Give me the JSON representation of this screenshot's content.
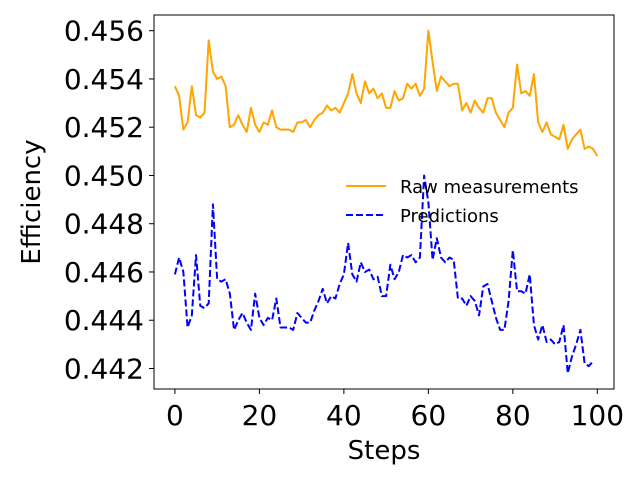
{
  "chart_data": {
    "type": "line",
    "xlabel": "Steps",
    "ylabel": "Efficiency",
    "xlim": [
      -4.95,
      103.95
    ],
    "ylim": [
      0.44115,
      0.45665
    ],
    "xticks": [
      0,
      20,
      40,
      60,
      80,
      100
    ],
    "xtick_labels": [
      "0",
      "20",
      "40",
      "60",
      "80",
      "100"
    ],
    "yticks": [
      0.442,
      0.444,
      0.446,
      0.448,
      0.45,
      0.452,
      0.454,
      0.456
    ],
    "ytick_labels": [
      "0.442",
      "0.444",
      "0.446",
      "0.448",
      "0.450",
      "0.452",
      "0.454",
      "0.456"
    ],
    "grid": false,
    "legend_position": "center-right",
    "series": [
      {
        "name": "Raw measurements",
        "color": "#ffa500",
        "style": "solid",
        "values": [
          0.4537,
          0.4533,
          0.4519,
          0.4522,
          0.4537,
          0.4525,
          0.4524,
          0.4526,
          0.4556,
          0.4543,
          0.454,
          0.4541,
          0.4537,
          0.452,
          0.4521,
          0.4525,
          0.4521,
          0.4518,
          0.4528,
          0.4521,
          0.4518,
          0.4522,
          0.4521,
          0.4527,
          0.452,
          0.4519,
          0.4519,
          0.4519,
          0.4518,
          0.4522,
          0.4522,
          0.4523,
          0.452,
          0.4523,
          0.4525,
          0.4526,
          0.4529,
          0.4527,
          0.4528,
          0.4526,
          0.453,
          0.4534,
          0.4542,
          0.4534,
          0.453,
          0.4539,
          0.4534,
          0.4536,
          0.4532,
          0.4534,
          0.4528,
          0.4528,
          0.4535,
          0.4531,
          0.4532,
          0.4538,
          0.4536,
          0.4538,
          0.4533,
          0.4536,
          0.456,
          0.4547,
          0.4535,
          0.4541,
          0.4539,
          0.4537,
          0.4538,
          0.4538,
          0.4527,
          0.453,
          0.4526,
          0.4531,
          0.4528,
          0.4526,
          0.4532,
          0.4532,
          0.4526,
          0.4523,
          0.452,
          0.4526,
          0.4528,
          0.4546,
          0.4534,
          0.4535,
          0.4533,
          0.4542,
          0.4522,
          0.4518,
          0.4522,
          0.4517,
          0.4516,
          0.4515,
          0.4521,
          0.4511,
          0.4515,
          0.4517,
          0.4519,
          0.4511,
          0.4512,
          0.4511,
          0.4508
        ]
      },
      {
        "name": "Predictions",
        "color": "#0000ff",
        "style": "dashed",
        "values": [
          0.4459,
          0.4466,
          0.446,
          0.4437,
          0.4442,
          0.4467,
          0.4446,
          0.4445,
          0.4447,
          0.4488,
          0.4457,
          0.4456,
          0.4457,
          0.4451,
          0.4436,
          0.444,
          0.4443,
          0.4439,
          0.4436,
          0.4451,
          0.4441,
          0.4438,
          0.4441,
          0.444,
          0.4449,
          0.4437,
          0.4437,
          0.4437,
          0.4436,
          0.4443,
          0.4441,
          0.4439,
          0.4439,
          0.4444,
          0.4448,
          0.4453,
          0.4447,
          0.445,
          0.4449,
          0.4455,
          0.4459,
          0.4472,
          0.4459,
          0.4456,
          0.4464,
          0.446,
          0.4461,
          0.4457,
          0.4458,
          0.445,
          0.445,
          0.4463,
          0.4457,
          0.446,
          0.4467,
          0.4466,
          0.4467,
          0.4464,
          0.4466,
          0.45,
          0.4489,
          0.4465,
          0.4474,
          0.4466,
          0.4464,
          0.4466,
          0.4465,
          0.4449,
          0.4449,
          0.4446,
          0.445,
          0.4448,
          0.4442,
          0.4454,
          0.4455,
          0.4448,
          0.4441,
          0.4436,
          0.4436,
          0.4448,
          0.4469,
          0.4452,
          0.4452,
          0.4451,
          0.4459,
          0.4438,
          0.4432,
          0.4438,
          0.4431,
          0.4432,
          0.443,
          0.4431,
          0.4438,
          0.4418,
          0.4425,
          0.443,
          0.4436,
          0.4422,
          0.4421,
          0.4423
        ]
      }
    ]
  }
}
